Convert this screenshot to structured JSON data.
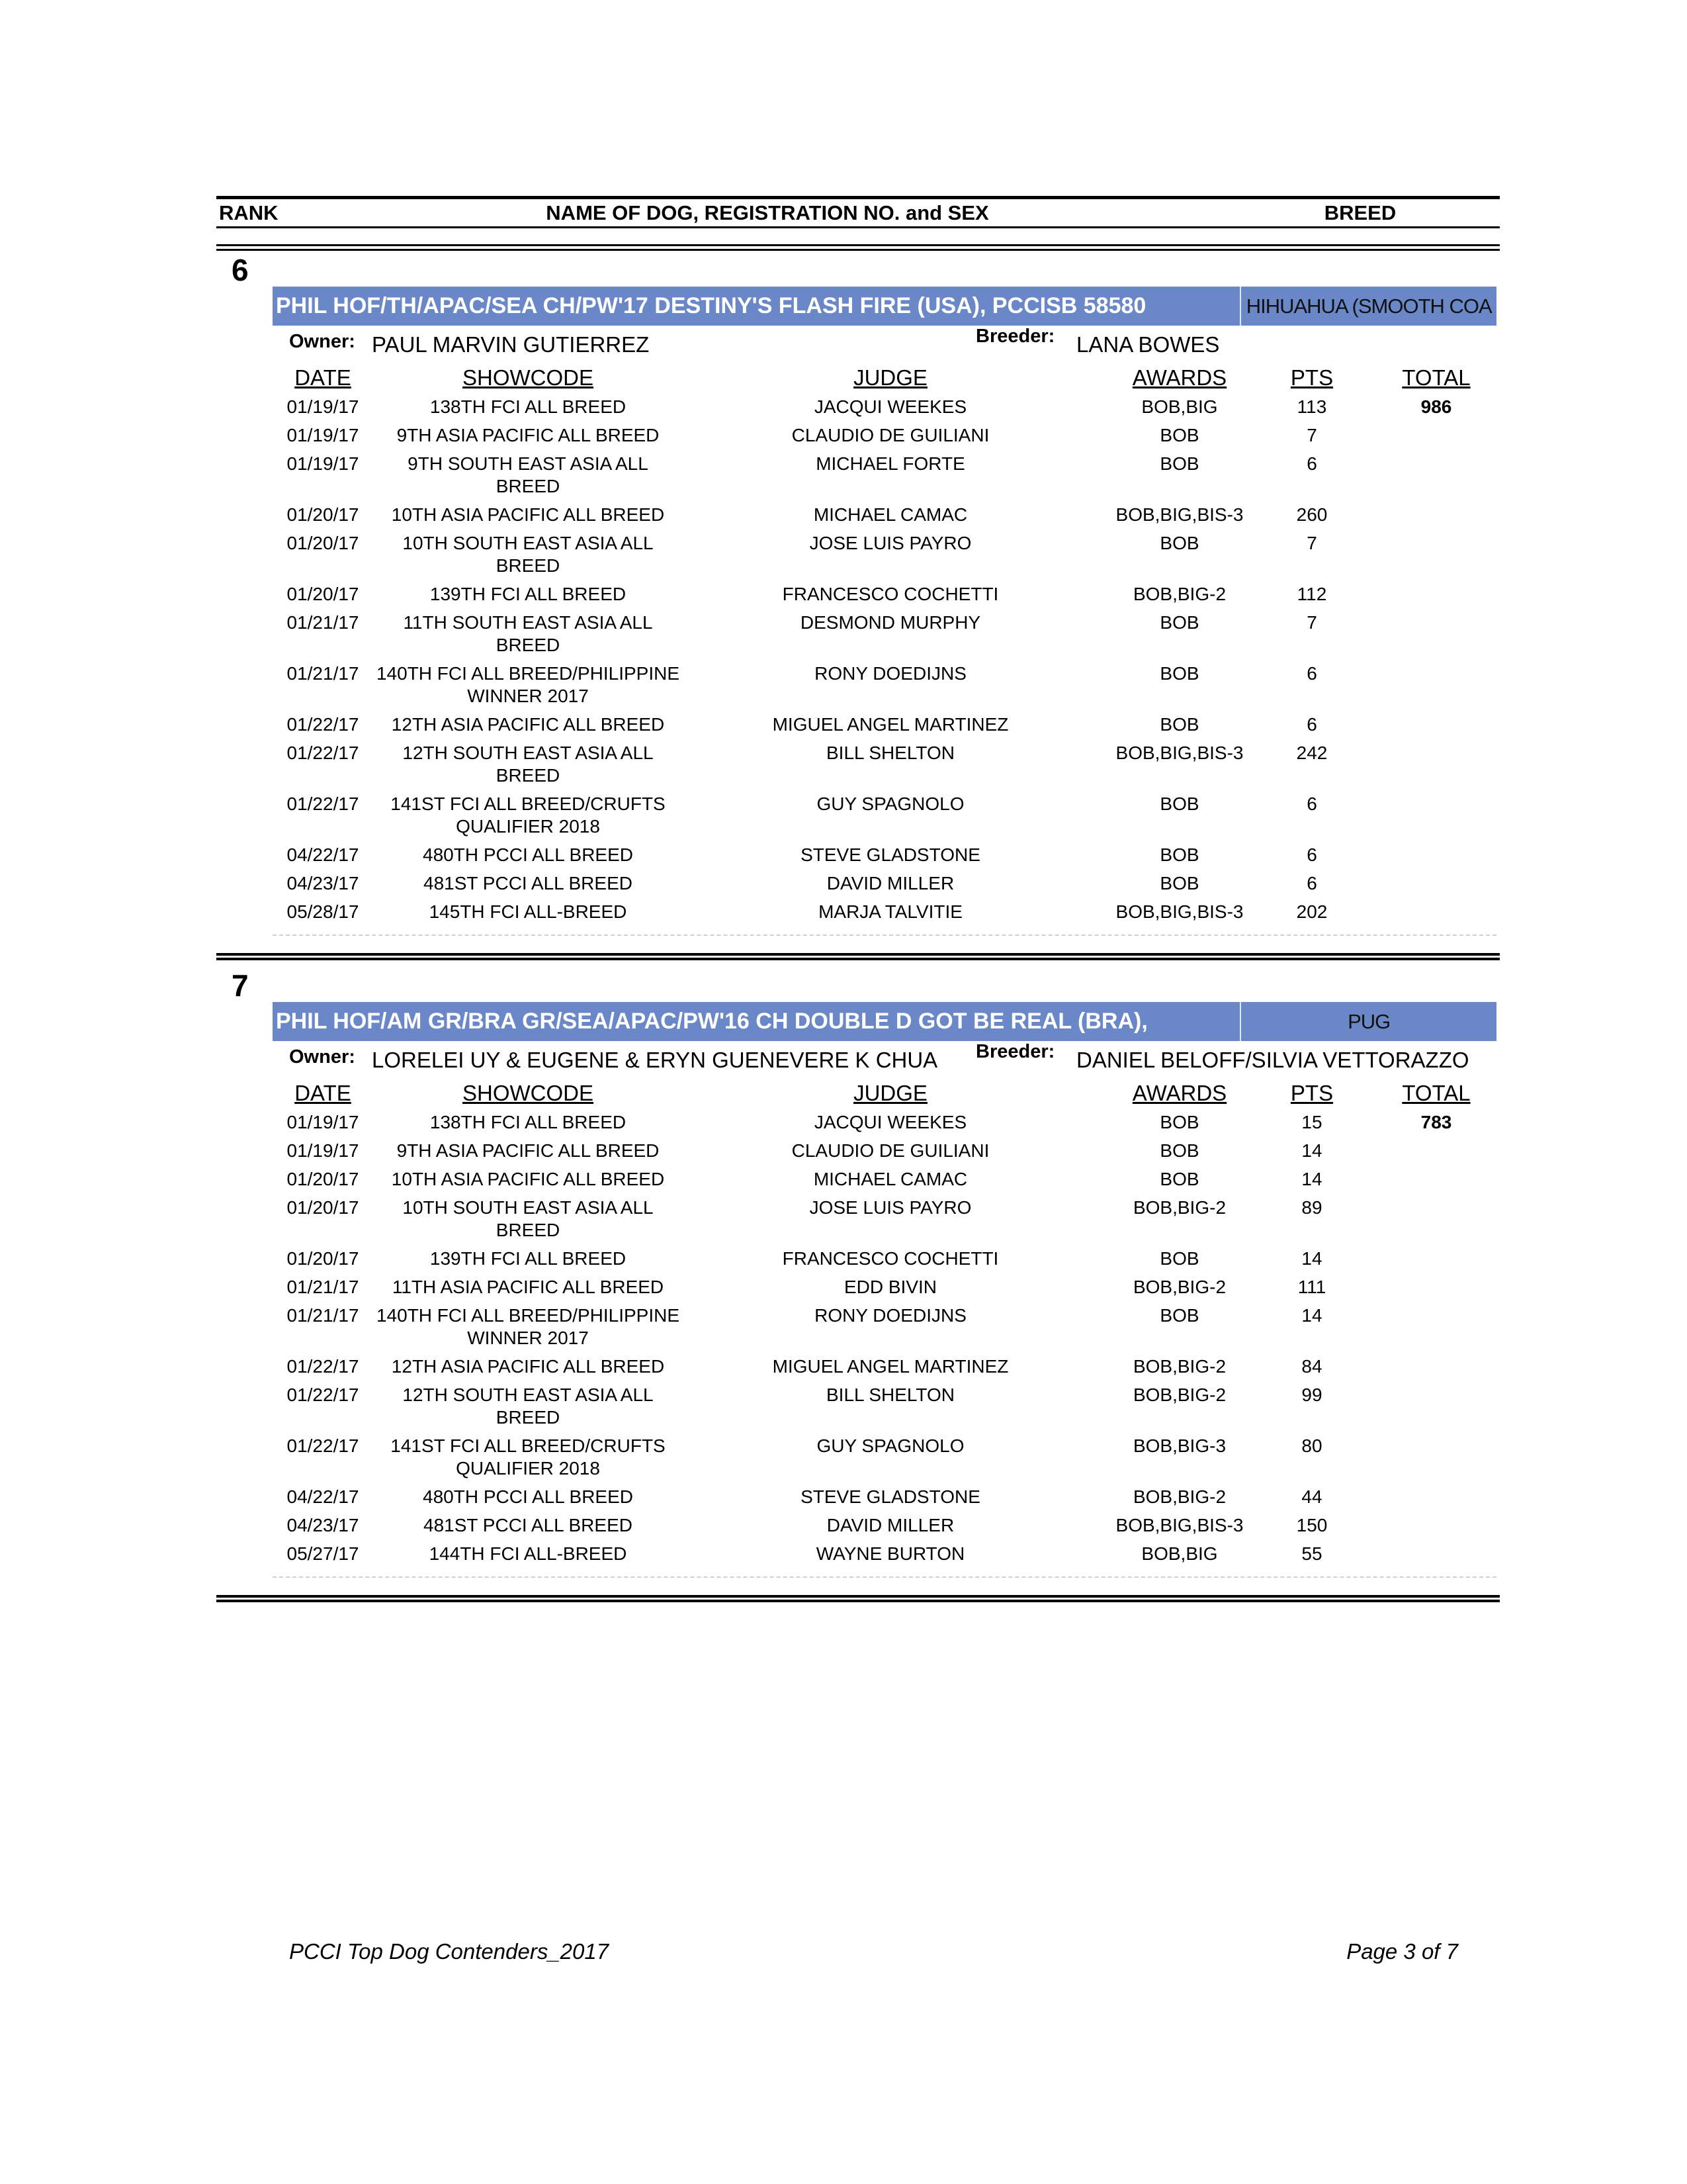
{
  "header": {
    "rank": "RANK",
    "name": "NAME OF DOG, REGISTRATION NO. and SEX",
    "breed": "BREED"
  },
  "labels": {
    "owner": "Owner:",
    "breeder": "Breeder:"
  },
  "columns": {
    "date": "DATE",
    "showcode": "SHOWCODE",
    "judge": "JUDGE",
    "awards": "AWARDS",
    "pts": "PTS",
    "total": "TOTAL"
  },
  "entries": [
    {
      "rank": "6",
      "name": "PHIL HOF/TH/APAC/SEA CH/PW'17 DESTINY'S FLASH FIRE (USA), PCCISB 58580",
      "breed": "HIHUAHUA (SMOOTH COA",
      "owner": "PAUL MARVIN GUTIERREZ",
      "breeder": "LANA BOWES",
      "total": 986,
      "rows": [
        [
          "01/19/17",
          "138TH FCI ALL BREED",
          "JACQUI WEEKES",
          "BOB,BIG",
          113
        ],
        [
          "01/19/17",
          "9TH ASIA PACIFIC ALL BREED",
          "CLAUDIO DE GUILIANI",
          "BOB",
          7
        ],
        [
          "01/19/17",
          "9TH SOUTH EAST ASIA ALL\nBREED",
          "MICHAEL FORTE",
          "BOB",
          6
        ],
        [
          "01/20/17",
          "10TH ASIA PACIFIC ALL BREED",
          "MICHAEL CAMAC",
          "BOB,BIG,BIS-3",
          260
        ],
        [
          "01/20/17",
          "10TH SOUTH EAST ASIA ALL\nBREED",
          "JOSE LUIS PAYRO",
          "BOB",
          7
        ],
        [
          "01/20/17",
          "139TH FCI ALL BREED",
          "FRANCESCO COCHETTI",
          "BOB,BIG-2",
          112
        ],
        [
          "01/21/17",
          "11TH SOUTH EAST ASIA ALL\nBREED",
          "DESMOND MURPHY",
          "BOB",
          7
        ],
        [
          "01/21/17",
          "140TH FCI ALL BREED/PHILIPPINE\nWINNER 2017",
          "RONY DOEDIJNS",
          "BOB",
          6
        ],
        [
          "01/22/17",
          "12TH ASIA PACIFIC ALL BREED",
          "MIGUEL ANGEL MARTINEZ",
          "BOB",
          6
        ],
        [
          "01/22/17",
          "12TH SOUTH EAST ASIA ALL\nBREED",
          "BILL SHELTON",
          "BOB,BIG,BIS-3",
          242
        ],
        [
          "01/22/17",
          "141ST FCI ALL BREED/CRUFTS\nQUALIFIER 2018",
          "GUY SPAGNOLO",
          "BOB",
          6
        ],
        [
          "04/22/17",
          "480TH PCCI ALL BREED",
          "STEVE GLADSTONE",
          "BOB",
          6
        ],
        [
          "04/23/17",
          "481ST PCCI ALL BREED",
          "DAVID MILLER",
          "BOB",
          6
        ],
        [
          "05/28/17",
          "145TH FCI ALL-BREED",
          "MARJA TALVITIE",
          "BOB,BIG,BIS-3",
          202
        ]
      ]
    },
    {
      "rank": "7",
      "name": "PHIL HOF/AM GR/BRA GR/SEA/APAC/PW'16 CH DOUBLE D GOT BE REAL (BRA),",
      "breed": "PUG",
      "owner": "LORELEI UY & EUGENE & ERYN GUENEVERE K CHUA",
      "breeder": "DANIEL BELOFF/SILVIA VETTORAZZO",
      "total": 783,
      "rows": [
        [
          "01/19/17",
          "138TH FCI ALL BREED",
          "JACQUI WEEKES",
          "BOB",
          15
        ],
        [
          "01/19/17",
          "9TH ASIA PACIFIC ALL BREED",
          "CLAUDIO DE GUILIANI",
          "BOB",
          14
        ],
        [
          "01/20/17",
          "10TH ASIA PACIFIC ALL BREED",
          "MICHAEL CAMAC",
          "BOB",
          14
        ],
        [
          "01/20/17",
          "10TH SOUTH EAST ASIA ALL\nBREED",
          "JOSE LUIS PAYRO",
          "BOB,BIG-2",
          89
        ],
        [
          "01/20/17",
          "139TH FCI ALL BREED",
          "FRANCESCO COCHETTI",
          "BOB",
          14
        ],
        [
          "01/21/17",
          "11TH ASIA PACIFIC ALL BREED",
          "EDD BIVIN",
          "BOB,BIG-2",
          111
        ],
        [
          "01/21/17",
          "140TH FCI ALL BREED/PHILIPPINE\nWINNER 2017",
          "RONY DOEDIJNS",
          "BOB",
          14
        ],
        [
          "01/22/17",
          "12TH ASIA PACIFIC ALL BREED",
          "MIGUEL ANGEL MARTINEZ",
          "BOB,BIG-2",
          84
        ],
        [
          "01/22/17",
          "12TH SOUTH EAST ASIA ALL\nBREED",
          "BILL SHELTON",
          "BOB,BIG-2",
          99
        ],
        [
          "01/22/17",
          "141ST FCI ALL BREED/CRUFTS\nQUALIFIER 2018",
          "GUY SPAGNOLO",
          "BOB,BIG-3",
          80
        ],
        [
          "04/22/17",
          "480TH PCCI ALL BREED",
          "STEVE GLADSTONE",
          "BOB,BIG-2",
          44
        ],
        [
          "04/23/17",
          "481ST PCCI ALL BREED",
          "DAVID MILLER",
          "BOB,BIG,BIS-3",
          150
        ],
        [
          "05/27/17",
          "144TH FCI ALL-BREED",
          "WAYNE BURTON",
          "BOB,BIG",
          55
        ]
      ]
    }
  ],
  "footer": {
    "left": "PCCI Top Dog Contenders_2017",
    "right": "Page 3 of 7"
  }
}
